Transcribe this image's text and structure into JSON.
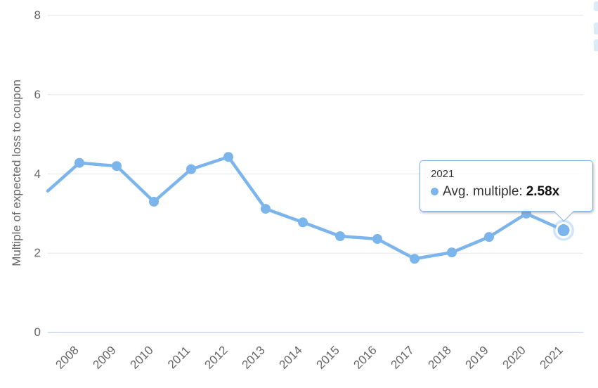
{
  "chart_data": {
    "type": "line",
    "title": "",
    "xlabel": "",
    "ylabel": "Multiple of expected loss to coupon",
    "categories": [
      "2008",
      "2009",
      "2010",
      "2011",
      "2012",
      "2013",
      "2014",
      "2015",
      "2016",
      "2017",
      "2018",
      "2019",
      "2020",
      "2021"
    ],
    "series": [
      {
        "name": "Avg. multiple",
        "values": [
          4.28,
          4.2,
          3.3,
          4.12,
          4.43,
          3.12,
          2.78,
          2.43,
          2.36,
          1.86,
          2.02,
          2.41,
          3.0,
          2.58
        ]
      }
    ],
    "lead_in_clipped_value": 3.57,
    "ylim": [
      0,
      8
    ],
    "yticks": [
      0,
      2,
      4,
      6,
      8
    ],
    "grid": "horizontal",
    "legend_position": "none",
    "highlighted_point": {
      "category": "2021",
      "value": 2.58
    }
  },
  "tooltip": {
    "header": "2021",
    "label": "Avg. multiple:",
    "value": "2.58x"
  },
  "colors": {
    "series": "#7cb5ec",
    "halo": "rgba(124,181,236,0.35)",
    "grid": "#e6e6e6",
    "axis_line": "#ccd6eb",
    "axis_text": "#666666",
    "tooltip_border": "#7cb5ec",
    "edge_widget": "#dcebf7"
  }
}
